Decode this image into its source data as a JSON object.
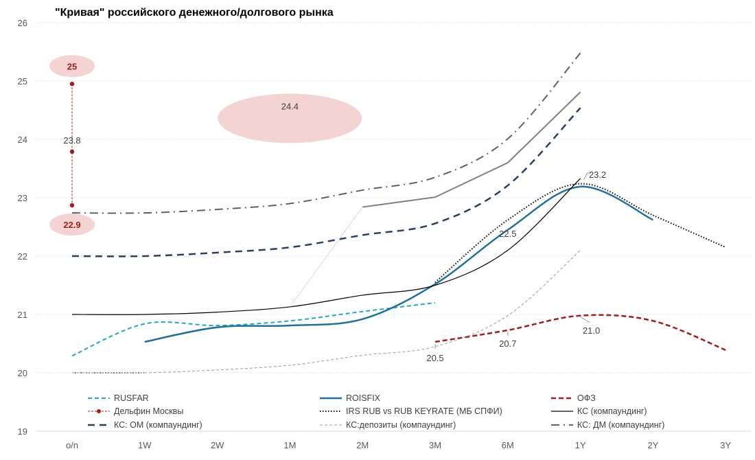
{
  "chart_data": {
    "type": "line",
    "title": "\"Кривая\" российского денежного/долгового рынка",
    "categories": [
      "o/n",
      "1W",
      "2W",
      "1M",
      "2M",
      "3M",
      "6M",
      "1Y",
      "2Y",
      "3Y"
    ],
    "ylim": [
      19,
      26
    ],
    "yticks": [
      "19",
      "20",
      "21",
      "22",
      "23",
      "24",
      "25",
      "26"
    ],
    "grid": "horizontal dotted",
    "legend_position": "bottom",
    "series": [
      {
        "name": "RUSFAR",
        "color": "#1fa8c9",
        "style": "dashed",
        "values": [
          20.29,
          20.84,
          20.81,
          20.89,
          21.05,
          21.2,
          null,
          null,
          null,
          null
        ]
      },
      {
        "name": "ROISFIX",
        "color": "#1f6f9f",
        "style": "solid-thick",
        "values": [
          null,
          20.53,
          20.78,
          20.81,
          20.92,
          21.52,
          22.45,
          23.19,
          22.62,
          null
        ]
      },
      {
        "name": "ОФЗ",
        "color": "#a31d1d",
        "style": "dashed-thick",
        "values": [
          null,
          null,
          null,
          null,
          null,
          20.53,
          20.73,
          20.98,
          20.89,
          20.39
        ]
      },
      {
        "name": "Дельфин Москвы",
        "color": "#a31d1d",
        "style": "dashed-markers",
        "points": [
          {
            "x": "o/n",
            "y": 24.95
          },
          {
            "x": "o/n",
            "y": 23.79
          },
          {
            "x": "o/n",
            "y": 22.87
          }
        ]
      },
      {
        "name": "IRS RUB vs RUB KEYRATE (МБ СПФИ)",
        "color": "#000000",
        "style": "dotted",
        "values": [
          null,
          null,
          null,
          null,
          null,
          21.55,
          22.62,
          23.24,
          22.7,
          22.15
        ]
      },
      {
        "name": "КС (компаундинг)",
        "color": "#000000",
        "style": "solid-thin",
        "values": [
          21.0,
          21.0,
          21.04,
          21.13,
          21.33,
          21.5,
          22.1,
          23.33,
          null,
          null
        ]
      },
      {
        "name": "КС: ОМ (компаундинг)",
        "color": "#2a3f5f",
        "style": "dashed-long",
        "values": [
          22.0,
          22.0,
          22.06,
          22.15,
          22.36,
          22.56,
          23.21,
          24.54,
          null,
          null
        ]
      },
      {
        "name": "КС:депозиты (компаундинг)",
        "color": "#9a9a9a",
        "style": "dashed-thin",
        "values": [
          20.0,
          20.0,
          20.05,
          20.13,
          20.3,
          20.45,
          20.98,
          22.1,
          null,
          null
        ]
      },
      {
        "name": "КС: ДМ (компаундинг)",
        "color": "#5a6270",
        "style": "dashdot",
        "values": [
          22.74,
          22.74,
          22.8,
          22.9,
          23.13,
          23.35,
          24.01,
          25.48,
          null,
          null
        ]
      },
      {
        "color": "#808080",
        "style": "solid-gray",
        "values": [
          null,
          null,
          null,
          21.13,
          22.84,
          23.01,
          23.6,
          24.81,
          null,
          null
        ]
      }
    ],
    "annotations": [
      {
        "label": "25",
        "x": "o/n",
        "y": 24.95,
        "highlight": true
      },
      {
        "label": "23.8",
        "x": "o/n",
        "y": 23.79
      },
      {
        "label": "22.9",
        "x": "o/n",
        "y": 22.87,
        "highlight": true
      },
      {
        "label": "24.4",
        "x": "1M",
        "y": 24.36,
        "highlight": true
      },
      {
        "label": "23.2",
        "x": "1Y",
        "y": 23.2
      },
      {
        "label": "22.5",
        "x": "6M",
        "y": 22.45
      },
      {
        "label": "20.5",
        "x": "3M",
        "y": 20.53
      },
      {
        "label": "20.7",
        "x": "6M",
        "y": 20.73
      },
      {
        "label": "21.0",
        "x": "1Y",
        "y": 20.98
      }
    ]
  }
}
